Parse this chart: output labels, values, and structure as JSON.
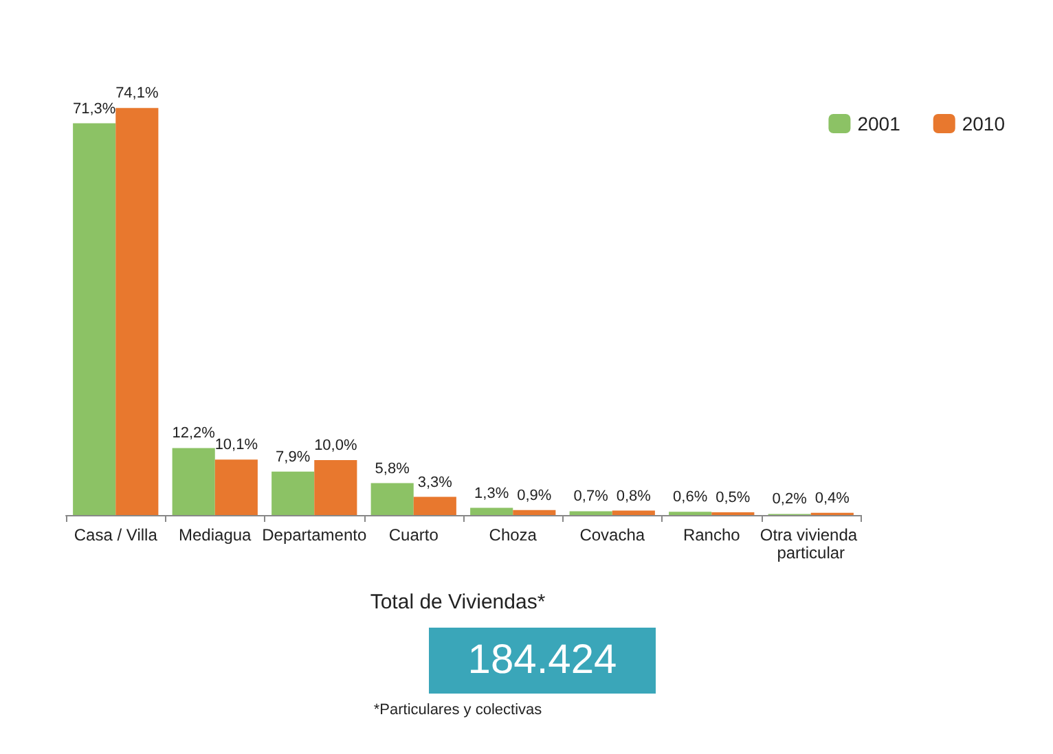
{
  "chart_data": {
    "type": "bar",
    "categories": [
      "Casa / Villa",
      "Mediagua",
      "Departamento",
      "Cuarto",
      "Choza",
      "Covacha",
      "Rancho",
      "Otra vivienda particular"
    ],
    "series": [
      {
        "name": "2001",
        "color": "#8cc265",
        "values": [
          71.3,
          12.2,
          7.9,
          5.8,
          1.3,
          0.7,
          0.6,
          0.2
        ],
        "value_labels": [
          "71,3%",
          "12,2%",
          "7,9%",
          "5,8%",
          "1,3%",
          "0,7%",
          "0,6%",
          "0,2%"
        ]
      },
      {
        "name": "2010",
        "color": "#e8782e",
        "values": [
          74.1,
          10.1,
          10.0,
          3.3,
          0.9,
          0.8,
          0.5,
          0.4
        ],
        "value_labels": [
          "74,1%",
          "10,1%",
          "10,0%",
          "3,3%",
          "0,9%",
          "0,8%",
          "0,5%",
          "0,4%"
        ]
      }
    ],
    "legend": "top right",
    "annotations": [
      "Total de Viviendas*",
      "184.424",
      "*Particulares y colectivas"
    ]
  }
}
